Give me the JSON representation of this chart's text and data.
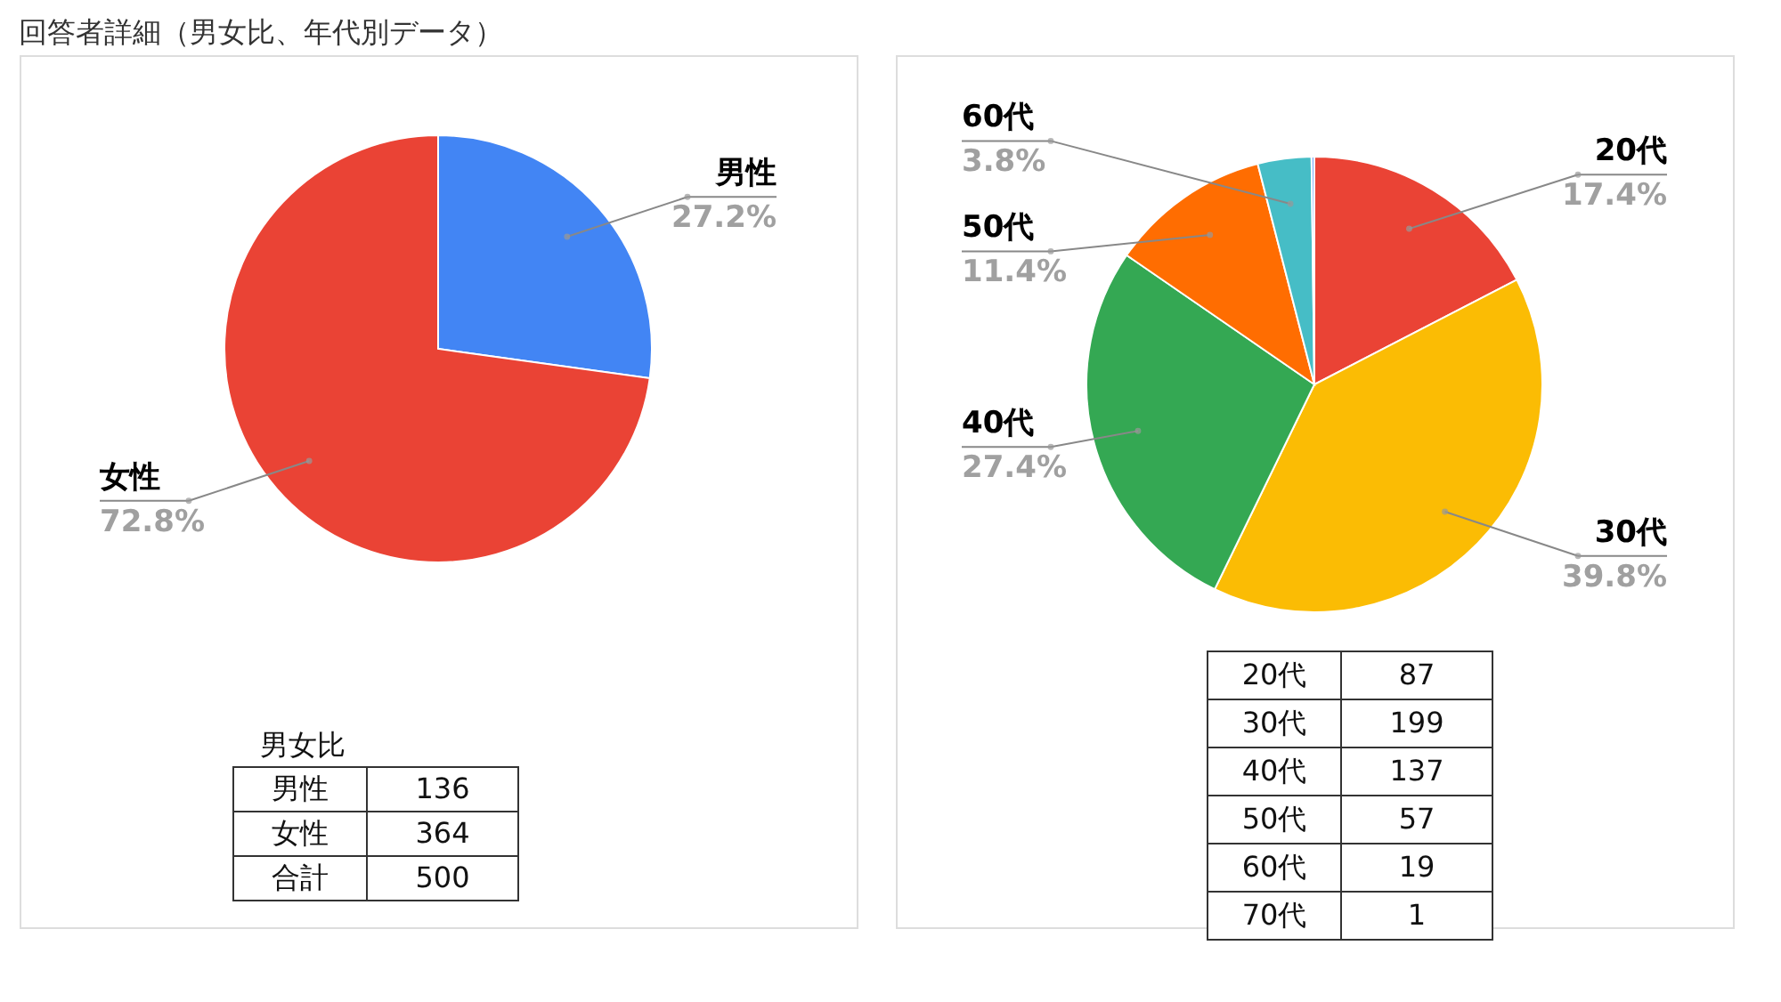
{
  "chart_data": [
    {
      "type": "pie",
      "title": "回答者詳細（男女比、年代別データ）",
      "categories": [
        "男性",
        "女性"
      ],
      "values": [
        27.2,
        72.8
      ],
      "colors": [
        "#4285f4",
        "#ea4335"
      ],
      "value_labels": [
        "27.2%",
        "72.8%"
      ],
      "annotations": [
        "男女比",
        "男性",
        "136",
        "女性",
        "364",
        "合計",
        "500"
      ]
    },
    {
      "type": "pie",
      "categories": [
        "20代",
        "30代",
        "40代",
        "50代",
        "60代",
        null
      ],
      "values": [
        17.4,
        39.8,
        27.4,
        11.4,
        3.8,
        0.2
      ],
      "colors": [
        "#ea4335",
        "#fbbc04",
        "#34a853",
        "#ff6d01",
        "#46bdc6",
        "#7baaf7"
      ],
      "value_labels": [
        "17.4%",
        "39.8%",
        "27.4%",
        "11.4%",
        "3.8%",
        null
      ],
      "annotations": [
        "20代",
        "87",
        "30代",
        "199",
        "40代",
        "137",
        "50代",
        "57",
        "60代",
        "19",
        "70代",
        "1"
      ]
    }
  ]
}
